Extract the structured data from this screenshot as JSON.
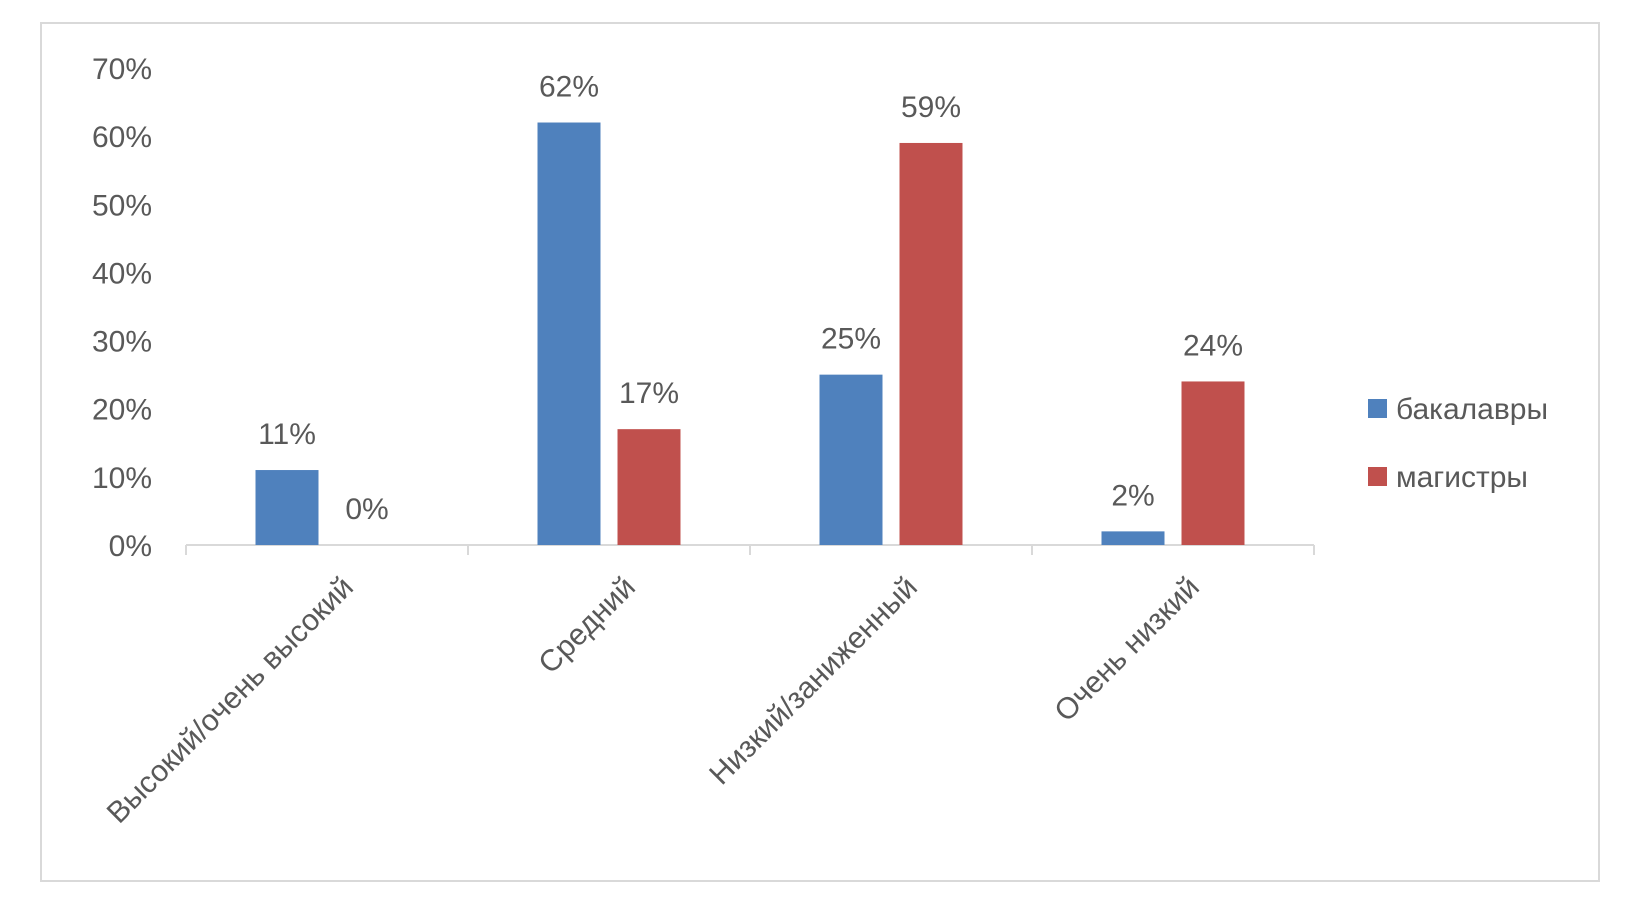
{
  "chart_data": {
    "type": "bar",
    "categories": [
      "Высокий/очень высокий",
      "Средний",
      "Низкий/заниженный",
      "Очень низкий"
    ],
    "series": [
      {
        "name": "бакалавры",
        "values": [
          11,
          62,
          25,
          2
        ],
        "labels": [
          "11%",
          "62%",
          "25%",
          "2%"
        ],
        "color": "#4F81BD"
      },
      {
        "name": "магистры",
        "values": [
          0,
          17,
          59,
          24
        ],
        "labels": [
          "0%",
          "17%",
          "59%",
          "24%"
        ],
        "color": "#C0504D"
      }
    ],
    "yticks": [
      "0%",
      "10%",
      "20%",
      "30%",
      "40%",
      "50%",
      "60%",
      "70%"
    ],
    "ylim": [
      0,
      70
    ],
    "ystep": 10,
    "legend_position": "right",
    "grid": false
  },
  "colors": {
    "axis": "#d9d9d9",
    "text": "#595959",
    "frame": "#d9d9d9"
  }
}
